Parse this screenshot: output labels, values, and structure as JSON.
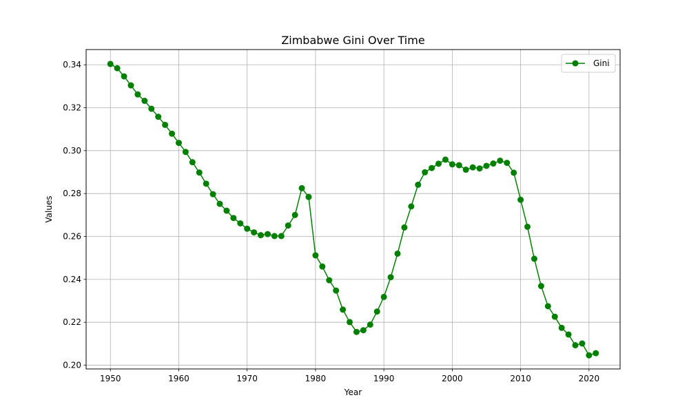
{
  "chart_data": {
    "type": "line",
    "title": "Zimbabwe Gini Over Time",
    "xlabel": "Year",
    "ylabel": "Values",
    "xlim": [
      1946.45,
      2024.55
    ],
    "ylim": [
      0.19825,
      0.3471
    ],
    "grid": true,
    "legend_position": "top-right",
    "x_ticks": [
      1950,
      1960,
      1970,
      1980,
      1990,
      2000,
      2010,
      2020
    ],
    "x_tick_labels": [
      "1950",
      "1960",
      "1970",
      "1980",
      "1990",
      "2000",
      "2010",
      "2020"
    ],
    "y_ticks": [
      0.2,
      0.22,
      0.24,
      0.26,
      0.28,
      0.3,
      0.32,
      0.34
    ],
    "y_tick_labels": [
      "0.20",
      "0.22",
      "0.24",
      "0.26",
      "0.28",
      "0.30",
      "0.32",
      "0.34"
    ],
    "series": [
      {
        "name": "Gini",
        "color": "#008000",
        "marker": "circle",
        "x": [
          1950,
          1951,
          1952,
          1953,
          1954,
          1955,
          1956,
          1957,
          1958,
          1959,
          1960,
          1961,
          1962,
          1963,
          1964,
          1965,
          1966,
          1967,
          1968,
          1969,
          1970,
          1971,
          1972,
          1973,
          1974,
          1975,
          1976,
          1977,
          1978,
          1979,
          1980,
          1981,
          1982,
          1983,
          1984,
          1985,
          1986,
          1987,
          1988,
          1989,
          1990,
          1991,
          1992,
          1993,
          1994,
          1995,
          1996,
          1997,
          1998,
          1999,
          2000,
          2001,
          2002,
          2003,
          2004,
          2005,
          2006,
          2007,
          2008,
          2009,
          2010,
          2011,
          2012,
          2013,
          2014,
          2015,
          2016,
          2017,
          2018,
          2019,
          2020,
          2021
        ],
        "values": [
          0.3404,
          0.3384,
          0.3346,
          0.3304,
          0.3262,
          0.3232,
          0.3195,
          0.3158,
          0.312,
          0.3079,
          0.3036,
          0.2994,
          0.2946,
          0.2898,
          0.2846,
          0.2797,
          0.2752,
          0.272,
          0.2686,
          0.2661,
          0.2636,
          0.2619,
          0.2606,
          0.2611,
          0.2602,
          0.2602,
          0.2651,
          0.27,
          0.2825,
          0.2784,
          0.2512,
          0.246,
          0.2396,
          0.2348,
          0.2259,
          0.2201,
          0.2155,
          0.2163,
          0.2189,
          0.225,
          0.2318,
          0.241,
          0.252,
          0.2642,
          0.274,
          0.2841,
          0.2899,
          0.2919,
          0.2939,
          0.2958,
          0.2936,
          0.2932,
          0.2911,
          0.2922,
          0.2917,
          0.2929,
          0.294,
          0.2953,
          0.2943,
          0.2897,
          0.2771,
          0.2645,
          0.2496,
          0.2369,
          0.2275,
          0.2226,
          0.2174,
          0.2143,
          0.2093,
          0.2101,
          0.2046,
          0.2056
        ]
      }
    ]
  }
}
